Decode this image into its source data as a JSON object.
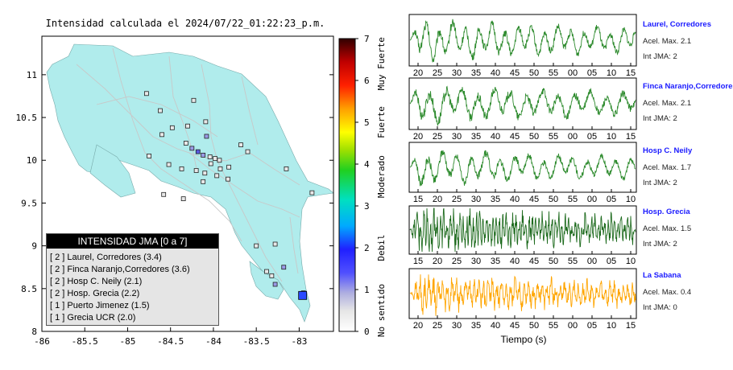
{
  "map": {
    "title": "Intensidad calculada el 2024/07/22_01:22:23_p.m.",
    "x_ticks": [
      "-86",
      "-85.5",
      "-85",
      "-84.5",
      "-84",
      "-83.5",
      "-83"
    ],
    "y_ticks": [
      "11",
      "10.5",
      "10",
      "9.5",
      "9",
      "8.5",
      "8"
    ],
    "stations": [
      {
        "lon": -84.78,
        "lat": 10.78,
        "v": 1
      },
      {
        "lon": -84.62,
        "lat": 10.58,
        "v": 1
      },
      {
        "lon": -84.23,
        "lat": 10.7,
        "v": 1
      },
      {
        "lon": -84.09,
        "lat": 10.45,
        "v": 1
      },
      {
        "lon": -84.48,
        "lat": 10.38,
        "v": 1
      },
      {
        "lon": -84.6,
        "lat": 10.3,
        "v": 1
      },
      {
        "lon": -84.3,
        "lat": 10.4,
        "v": 1
      },
      {
        "lon": -84.08,
        "lat": 10.28,
        "v": 2
      },
      {
        "lon": -83.68,
        "lat": 10.18,
        "v": 1
      },
      {
        "lon": -83.6,
        "lat": 10.1,
        "v": 1
      },
      {
        "lon": -84.32,
        "lat": 10.2,
        "v": 1
      },
      {
        "lon": -84.25,
        "lat": 10.14,
        "v": 2
      },
      {
        "lon": -84.18,
        "lat": 10.1,
        "v": 3
      },
      {
        "lon": -84.12,
        "lat": 10.06,
        "v": 2
      },
      {
        "lon": -84.04,
        "lat": 10.04,
        "v": 1
      },
      {
        "lon": -83.98,
        "lat": 10.02,
        "v": 1
      },
      {
        "lon": -83.93,
        "lat": 10.0,
        "v": 1
      },
      {
        "lon": -84.03,
        "lat": 9.96,
        "v": 1
      },
      {
        "lon": -83.92,
        "lat": 9.9,
        "v": 1
      },
      {
        "lon": -83.96,
        "lat": 9.82,
        "v": 1
      },
      {
        "lon": -84.1,
        "lat": 9.85,
        "v": 1
      },
      {
        "lon": -84.2,
        "lat": 9.88,
        "v": 1
      },
      {
        "lon": -84.37,
        "lat": 9.9,
        "v": 1
      },
      {
        "lon": -84.52,
        "lat": 9.95,
        "v": 1
      },
      {
        "lon": -84.75,
        "lat": 10.05,
        "v": 1
      },
      {
        "lon": -84.12,
        "lat": 9.75,
        "v": 1
      },
      {
        "lon": -83.82,
        "lat": 9.92,
        "v": 1
      },
      {
        "lon": -83.83,
        "lat": 9.78,
        "v": 1
      },
      {
        "lon": -84.58,
        "lat": 9.6,
        "v": 1
      },
      {
        "lon": -84.35,
        "lat": 9.55,
        "v": 1
      },
      {
        "lon": -83.15,
        "lat": 9.9,
        "v": 1
      },
      {
        "lon": -82.85,
        "lat": 9.62,
        "v": 1
      },
      {
        "lon": -83.5,
        "lat": 9.0,
        "v": 1
      },
      {
        "lon": -83.28,
        "lat": 9.02,
        "v": 1
      },
      {
        "lon": -83.18,
        "lat": 8.75,
        "v": 2
      },
      {
        "lon": -83.38,
        "lat": 8.7,
        "v": 1
      },
      {
        "lon": -83.32,
        "lat": 8.65,
        "v": 1
      },
      {
        "lon": -83.28,
        "lat": 8.55,
        "v": 2
      },
      {
        "lon": -82.95,
        "lat": 8.45,
        "v": 2
      }
    ],
    "epicenter": {
      "lon": -82.96,
      "lat": 8.42,
      "v": 2
    }
  },
  "colorbar": {
    "ticks": [
      "0",
      "1",
      "2",
      "3",
      "4",
      "5",
      "6",
      "7"
    ],
    "category_labels": [
      {
        "label": "No sentido",
        "at": 0.5
      },
      {
        "label": "Debil",
        "at": 2.0
      },
      {
        "label": "Moderado",
        "at": 3.7
      },
      {
        "label": "Fuerte",
        "at": 5.0
      },
      {
        "label": "Muy Fuerte",
        "at": 6.4
      }
    ]
  },
  "legend": {
    "title": "INTENSIDAD JMA [0 a 7]",
    "entries": [
      "[ 2 ]  Laurel, Corredores (3.4)",
      "[ 2 ]  Finca Naranjo,Corredores (3.6)",
      "[ 2 ]  Hosp C. Neily (2.1)",
      "[ 2 ]  Hosp. Grecia (2.2)",
      "[ 1 ]  Puerto Jimenez (1.5)",
      "[ 1 ]  Grecia UCR (2.0)"
    ]
  },
  "traces": [
    {
      "name": "Laurel, Corredores",
      "acel": "Acel. Max. 2.1",
      "int": "Int JMA: 2",
      "color": "#2e8b2e",
      "ticks": [
        "20",
        "25",
        "30",
        "35",
        "40",
        "45",
        "50",
        "55",
        "00",
        "05",
        "10",
        "15"
      ],
      "tick_start": 20,
      "amp": 0.9,
      "freq": 0.55,
      "noise": 0.25
    },
    {
      "name": "Finca Naranjo,Corredores",
      "acel": "Acel. Max. 2.1",
      "int": "Int JMA: 2",
      "color": "#2e8b2e",
      "ticks": [
        "20",
        "25",
        "30",
        "35",
        "40",
        "45",
        "50",
        "55",
        "00",
        "05",
        "10",
        "15"
      ],
      "tick_start": 20,
      "amp": 0.85,
      "freq": 0.45,
      "noise": 0.3
    },
    {
      "name": "Hosp C. Neily",
      "acel": "Acel. Max. 1.7",
      "int": "Int JMA: 2",
      "color": "#2e8b2e",
      "ticks": [
        "15",
        "20",
        "25",
        "30",
        "35",
        "40",
        "45",
        "50",
        "55",
        "00",
        "05",
        "10"
      ],
      "tick_start": 15,
      "amp": 0.8,
      "freq": 0.5,
      "noise": 0.25
    },
    {
      "name": "Hosp. Grecia",
      "acel": "Acel. Max. 1.5",
      "int": "Int JMA: 2",
      "color": "#1e6b1e",
      "ticks": [
        "15",
        "20",
        "25",
        "30",
        "35",
        "40",
        "45",
        "50",
        "55",
        "00",
        "05",
        "10"
      ],
      "tick_start": 15,
      "amp": 0.9,
      "freq": 2.2,
      "noise": 0.6
    },
    {
      "name": "La Sabana",
      "acel": "Acel. Max. 0.4",
      "int": "Int JMA: 0",
      "color": "#ffa500",
      "ticks": [
        "20",
        "25",
        "30",
        "35",
        "40",
        "45",
        "50",
        "55",
        "00",
        "05",
        "10",
        "15"
      ],
      "tick_start": 20,
      "amp": 0.75,
      "freq": 1.6,
      "noise": 0.6
    }
  ],
  "traces_xlabel": "Tiempo (s)"
}
